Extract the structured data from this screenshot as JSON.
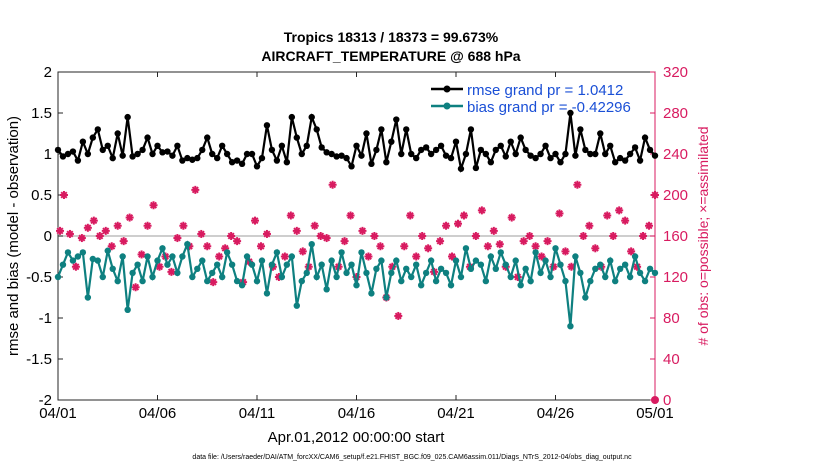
{
  "chart_data": {
    "type": "line",
    "title_line1": "Tropics 18313 / 18373 = 99.673%",
    "title_line2": "AIRCRAFT_TEMPERATURE @ 688 hPa",
    "xlabel": "Apr.01,2012 00:00:00 start",
    "ylabel": "rmse and bias (model - observation)",
    "y2label": "# of obs: o=possible; ×=assimilated",
    "xlim": [
      0,
      30
    ],
    "ylim": [
      -2,
      2
    ],
    "y2lim": [
      0,
      320
    ],
    "xticks": [
      0,
      5,
      10,
      15,
      20,
      25,
      30
    ],
    "xtick_labels": [
      "04/01",
      "04/06",
      "04/11",
      "04/16",
      "04/21",
      "04/26",
      "05/01"
    ],
    "yticks": [
      -2,
      -1.5,
      -1,
      -0.5,
      0,
      0.5,
      1,
      1.5,
      2
    ],
    "ytick_labels": [
      "-2",
      "-1.5",
      "-1",
      "-0.5",
      "0",
      "0.5",
      "1",
      "1.5",
      "2"
    ],
    "y2ticks": [
      0,
      40,
      80,
      120,
      160,
      200,
      240,
      280,
      320
    ],
    "y2tick_labels": [
      "0",
      "40",
      "80",
      "120",
      "160",
      "200",
      "240",
      "280",
      "320"
    ],
    "zero_line": 0,
    "legend": {
      "position": "top-right",
      "entries": [
        "rmse grand pr = 1.0412",
        "bias grand pr = -0.42296"
      ]
    },
    "colors": {
      "rmse": "#000000",
      "bias": "#0e8080",
      "obs": "#d81b60",
      "legend_text": "#1a4fd6",
      "zero_line": "#b0b0b0"
    },
    "series": [
      {
        "name": "rmse",
        "x": [
          0,
          0.25,
          0.5,
          0.75,
          1,
          1.25,
          1.5,
          1.75,
          2,
          2.25,
          2.5,
          2.75,
          3,
          3.25,
          3.5,
          3.75,
          4,
          4.25,
          4.5,
          4.75,
          5,
          5.25,
          5.5,
          5.75,
          6,
          6.25,
          6.5,
          6.75,
          7,
          7.25,
          7.5,
          7.75,
          8,
          8.25,
          8.5,
          8.75,
          9,
          9.25,
          9.5,
          9.75,
          10,
          10.25,
          10.5,
          10.75,
          11,
          11.25,
          11.5,
          11.75,
          12,
          12.25,
          12.5,
          12.75,
          13,
          13.25,
          13.5,
          13.75,
          14,
          14.25,
          14.5,
          14.75,
          15,
          15.25,
          15.5,
          15.75,
          16,
          16.25,
          16.5,
          16.75,
          17,
          17.25,
          17.5,
          17.75,
          18,
          18.25,
          18.5,
          18.75,
          19,
          19.25,
          19.5,
          19.75,
          20,
          20.25,
          20.5,
          20.75,
          21,
          21.25,
          21.5,
          21.75,
          22,
          22.25,
          22.5,
          22.75,
          23,
          23.25,
          23.5,
          23.75,
          24,
          24.25,
          24.5,
          24.75,
          25,
          25.25,
          25.5,
          25.75,
          26,
          26.25,
          26.5,
          26.75,
          27,
          27.25,
          27.5,
          27.75,
          28,
          28.25,
          28.5,
          28.75,
          29,
          29.25,
          29.5,
          29.75,
          30
        ],
        "values": [
          1.05,
          0.97,
          1.0,
          1.03,
          0.92,
          1.15,
          1.0,
          1.2,
          1.3,
          1.05,
          1.1,
          0.95,
          1.25,
          0.98,
          1.45,
          0.97,
          1.0,
          1.05,
          1.2,
          1.0,
          1.1,
          1.02,
          1.03,
          0.98,
          1.1,
          0.92,
          0.95,
          0.93,
          0.95,
          1.05,
          1.2,
          1.0,
          0.95,
          1.1,
          1.0,
          0.9,
          0.92,
          0.88,
          1.0,
          1.0,
          0.85,
          0.95,
          1.35,
          1.05,
          0.92,
          1.1,
          0.9,
          1.45,
          1.2,
          1.0,
          1.1,
          1.45,
          1.3,
          1.08,
          1.02,
          1.0,
          0.97,
          0.98,
          0.95,
          0.85,
          1.1,
          0.98,
          1.25,
          0.88,
          1.05,
          1.3,
          0.9,
          1.15,
          1.42,
          1.0,
          1.3,
          1.0,
          0.95,
          1.05,
          1.08,
          1.0,
          1.05,
          1.1,
          0.98,
          0.95,
          1.15,
          0.82,
          1.0,
          1.3,
          0.83,
          1.05,
          1.0,
          0.9,
          1.05,
          1.1,
          0.97,
          1.15,
          1.0,
          1.2,
          1.05,
          0.98,
          0.95,
          1.0,
          1.1,
          0.95,
          1.0,
          0.9,
          1.0,
          1.5,
          0.98,
          1.3,
          1.05,
          1.0,
          1.0,
          1.25,
          1.0,
          1.1,
          0.9,
          0.95,
          0.92,
          1.0,
          1.08,
          0.92,
          1.2,
          1.05,
          0.98
        ]
      },
      {
        "name": "bias",
        "x": [
          0,
          0.25,
          0.5,
          0.75,
          1,
          1.25,
          1.5,
          1.75,
          2,
          2.25,
          2.5,
          2.75,
          3,
          3.25,
          3.5,
          3.75,
          4,
          4.25,
          4.5,
          4.75,
          5,
          5.25,
          5.5,
          5.75,
          6,
          6.25,
          6.5,
          6.75,
          7,
          7.25,
          7.5,
          7.75,
          8,
          8.25,
          8.5,
          8.75,
          9,
          9.25,
          9.5,
          9.75,
          10,
          10.25,
          10.5,
          10.75,
          11,
          11.25,
          11.5,
          11.75,
          12,
          12.25,
          12.5,
          12.75,
          13,
          13.25,
          13.5,
          13.75,
          14,
          14.25,
          14.5,
          14.75,
          15,
          15.25,
          15.5,
          15.75,
          16,
          16.25,
          16.5,
          16.75,
          17,
          17.25,
          17.5,
          17.75,
          18,
          18.25,
          18.5,
          18.75,
          19,
          19.25,
          19.5,
          19.75,
          20,
          20.25,
          20.5,
          20.75,
          21,
          21.25,
          21.5,
          21.75,
          22,
          22.25,
          22.5,
          22.75,
          23,
          23.25,
          23.5,
          23.75,
          24,
          24.25,
          24.5,
          24.75,
          25,
          25.25,
          25.5,
          25.75,
          26,
          26.25,
          26.5,
          26.75,
          27,
          27.25,
          27.5,
          27.75,
          28,
          28.25,
          28.5,
          28.75,
          29,
          29.25,
          29.5,
          29.75,
          30
        ],
        "values": [
          -0.5,
          -0.35,
          -0.2,
          -0.3,
          -0.25,
          -0.2,
          -0.75,
          -0.28,
          -0.3,
          -0.5,
          -0.18,
          -0.4,
          -0.55,
          -0.25,
          -0.9,
          -0.45,
          -0.35,
          -0.55,
          -0.25,
          -0.5,
          -0.3,
          -0.15,
          -0.35,
          -0.25,
          -0.45,
          -0.25,
          -0.1,
          -0.5,
          -0.4,
          -0.3,
          -0.55,
          -0.45,
          -0.35,
          -0.5,
          -0.2,
          -0.35,
          -0.55,
          -0.6,
          -0.25,
          -0.35,
          -0.55,
          -0.3,
          -0.7,
          -0.35,
          -0.2,
          -0.5,
          -0.35,
          -0.25,
          -0.85,
          -0.55,
          -0.45,
          -0.1,
          -0.5,
          -0.35,
          -0.65,
          -0.3,
          -0.5,
          -0.2,
          -0.45,
          -0.35,
          -0.6,
          -0.2,
          -0.45,
          -0.7,
          -0.4,
          -0.3,
          -0.75,
          -0.45,
          -0.3,
          -0.55,
          -0.4,
          -0.5,
          -0.35,
          -0.6,
          -0.45,
          -0.3,
          -0.55,
          -0.4,
          -0.45,
          -0.6,
          -0.3,
          -0.5,
          -0.15,
          -0.4,
          -0.3,
          -0.35,
          -0.55,
          -0.25,
          -0.4,
          -0.2,
          -0.35,
          -0.5,
          -0.3,
          -0.6,
          -0.4,
          -0.55,
          -0.2,
          -0.45,
          -0.3,
          -0.5,
          -0.15,
          -0.35,
          -0.55,
          -1.1,
          -0.25,
          -0.45,
          -0.75,
          -0.55,
          -0.4,
          -0.35,
          -0.5,
          -0.3,
          -0.55,
          -0.4,
          -0.35,
          -0.5,
          -0.25,
          -0.45,
          -0.55,
          -0.4,
          -0.45
        ]
      },
      {
        "name": "obs_possible_assimilated",
        "x": [
          0.1,
          0.3,
          0.6,
          0.9,
          1.2,
          1.5,
          1.8,
          2.1,
          2.4,
          2.7,
          3.0,
          3.3,
          3.6,
          3.9,
          4.2,
          4.5,
          4.8,
          5.1,
          5.4,
          5.7,
          6.0,
          6.3,
          6.6,
          6.9,
          7.2,
          7.5,
          7.8,
          8.1,
          8.4,
          8.7,
          9.0,
          9.3,
          9.6,
          9.9,
          10.2,
          10.5,
          10.8,
          11.1,
          11.4,
          11.7,
          12.0,
          12.3,
          12.6,
          12.9,
          13.2,
          13.5,
          13.8,
          14.1,
          14.4,
          14.7,
          15.0,
          15.3,
          15.6,
          15.9,
          16.2,
          16.5,
          16.8,
          17.1,
          17.4,
          17.7,
          18.0,
          18.3,
          18.6,
          18.9,
          19.2,
          19.5,
          19.8,
          20.1,
          20.4,
          20.7,
          21.0,
          21.3,
          21.6,
          21.9,
          22.2,
          22.5,
          22.8,
          23.1,
          23.4,
          23.7,
          24.0,
          24.3,
          24.6,
          24.9,
          25.2,
          25.5,
          25.8,
          26.1,
          26.4,
          26.7,
          27.0,
          27.3,
          27.6,
          27.9,
          28.2,
          28.5,
          28.8,
          29.1,
          29.4,
          29.7,
          30.0
        ],
        "values": [
          165,
          200,
          162,
          130,
          158,
          168,
          175,
          160,
          165,
          150,
          170,
          155,
          178,
          110,
          142,
          170,
          190,
          130,
          140,
          125,
          158,
          170,
          150,
          205,
          162,
          150,
          115,
          140,
          148,
          160,
          155,
          115,
          135,
          175,
          150,
          162,
          130,
          120,
          140,
          180,
          165,
          145,
          130,
          170,
          160,
          158,
          210,
          130,
          155,
          180,
          120,
          165,
          140,
          160,
          150,
          100,
          130,
          82,
          150,
          180,
          140,
          160,
          148,
          125,
          155,
          170,
          140,
          172,
          180,
          130,
          160,
          185,
          150,
          165,
          152,
          130,
          178,
          120,
          155,
          160,
          150,
          140,
          155,
          130,
          182,
          145,
          130,
          210,
          160,
          170,
          148,
          130,
          180,
          160,
          185,
          175,
          145,
          130,
          160,
          170,
          200
        ]
      }
    ],
    "footer": "data file: /Users/raeder/DAI/ATM_forcXX/CAM6_setup/f.e21.FHIST_BGC.f09_025.CAM6assim.011/Diags_NTrS_2012-04/obs_diag_output.nc"
  }
}
